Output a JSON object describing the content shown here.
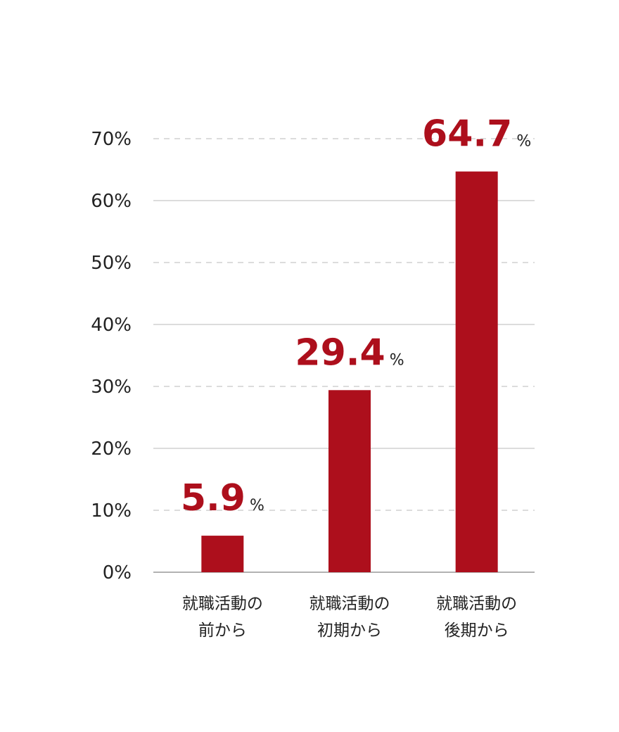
{
  "chart_data": {
    "type": "bar",
    "categories": [
      [
        "就職活動の",
        "前から"
      ],
      [
        "就職活動の",
        "初期から"
      ],
      [
        "就職活動の",
        "後期から"
      ]
    ],
    "values": [
      5.9,
      29.4,
      64.7
    ],
    "value_labels": [
      "5.9%",
      "29.4%",
      "64.7%"
    ],
    "color": "#ad0f1c",
    "ylim": [
      0,
      70
    ],
    "yticks": [
      {
        "value": 0,
        "label": "0%"
      },
      {
        "value": 10,
        "label": "10%"
      },
      {
        "value": 20,
        "label": "20%"
      },
      {
        "value": 30,
        "label": "30%"
      },
      {
        "value": 40,
        "label": "40%"
      },
      {
        "value": 50,
        "label": "50%"
      },
      {
        "value": 60,
        "label": "60%"
      },
      {
        "value": 70,
        "label": "70%"
      }
    ],
    "grid": true
  }
}
